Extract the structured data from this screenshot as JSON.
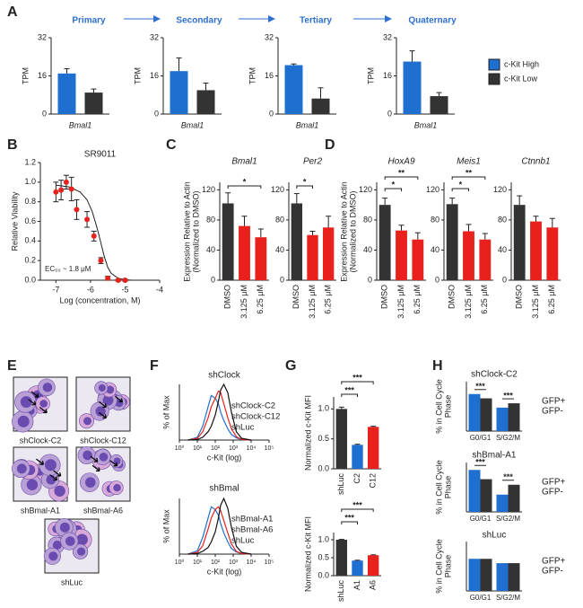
{
  "chart_data": [
    {
      "type": "bar",
      "panel": "A",
      "title": "Primary",
      "ylabel": "TPM",
      "categories": [
        "Bmal1"
      ],
      "series": [
        {
          "color": "#1f6fd1",
          "values": [
            17
          ],
          "errors": [
            2
          ]
        },
        {
          "color": "#333333",
          "values": [
            9
          ],
          "errors": [
            1.5
          ]
        }
      ],
      "ylim": [
        0,
        32
      ],
      "yticks": [
        0,
        16,
        32
      ]
    },
    {
      "type": "bar",
      "title": "Secondary",
      "ylabel": "TPM",
      "categories": [
        "Bmal1"
      ],
      "series": [
        {
          "color": "#1f6fd1",
          "values": [
            18
          ],
          "errors": [
            5.5
          ]
        },
        {
          "color": "#333333",
          "values": [
            10
          ],
          "errors": [
            3
          ]
        }
      ],
      "ylim": [
        0,
        32
      ],
      "yticks": [
        0,
        16,
        32
      ]
    },
    {
      "type": "bar",
      "title": "Tertiary",
      "ylabel": "TPM",
      "categories": [
        "Bmal1"
      ],
      "series": [
        {
          "color": "#1f6fd1",
          "values": [
            20.5
          ],
          "errors": [
            0.5
          ]
        },
        {
          "color": "#333333",
          "values": [
            6.5
          ],
          "errors": [
            4.5
          ]
        }
      ],
      "ylim": [
        0,
        32
      ],
      "yticks": [
        0,
        16,
        32
      ]
    },
    {
      "type": "bar",
      "title": "Quaternary",
      "ylabel": "TPM",
      "categories": [
        "Bmal1"
      ],
      "series": [
        {
          "name": "c-Kit High",
          "color": "#1f6fd1",
          "values": [
            22
          ],
          "errors": [
            4.5
          ]
        },
        {
          "name": "c-Kit Low",
          "color": "#333333",
          "values": [
            7.5
          ],
          "errors": [
            1.5
          ]
        }
      ],
      "ylim": [
        0,
        32
      ],
      "yticks": [
        0,
        16,
        32
      ],
      "legend": "right"
    },
    {
      "type": "scatter",
      "panel": "B",
      "title": "SR9011",
      "xlabel": "Log (concentration, M)",
      "ylabel": "Relative Viability",
      "annotation": "EC₅₀ ~ 1.8 μM",
      "color": "#e8211c",
      "x": [
        -7,
        -6.85,
        -6.7,
        -6.55,
        -6.4,
        -6.1,
        -5.9,
        -5.7,
        -5.5,
        -5.2,
        -5.0
      ],
      "values": [
        0.9,
        0.92,
        1.0,
        0.93,
        0.72,
        0.62,
        0.45,
        0.2,
        0.02,
        0.0,
        0.0
      ],
      "errors": [
        0.1,
        0.1,
        0.07,
        0.12,
        0.1,
        0.08,
        0.05,
        0.03,
        0.02,
        0.01,
        0.01
      ],
      "fit": {
        "x": [
          -7,
          -6.6,
          -6.3,
          -6.1,
          -5.95,
          -5.8,
          -5.7,
          -5.6,
          -5.5,
          -5.4,
          -5.2,
          -5.0,
          -4.8
        ],
        "y": [
          0.97,
          0.95,
          0.9,
          0.82,
          0.7,
          0.52,
          0.38,
          0.24,
          0.13,
          0.07,
          0.02,
          0.005,
          0
        ]
      },
      "xlim": [
        -7.45,
        -4
      ],
      "xticks": [
        -7,
        -6,
        -5,
        -4
      ],
      "ylim": [
        0,
        1.2
      ],
      "yticks": [
        {
          "value": 0,
          "label": "0.0"
        },
        0.2,
        0.4,
        0.6,
        0.8,
        {
          "value": 1,
          "label": "1.0"
        },
        1.2
      ]
    },
    {
      "type": "bar",
      "panel": "C",
      "title": "Bmal1",
      "ylabel": [
        "Expression Relative to Actin",
        "(Normalized to DMSO)"
      ],
      "categories": [
        "DMSO",
        "3.125 μM",
        "6.25 μM"
      ],
      "values": [
        102,
        72,
        57
      ],
      "errors": [
        14,
        13,
        11
      ],
      "colors": [
        "#333333",
        "#e8211c",
        "#e8211c"
      ],
      "ylim": [
        0,
        130
      ],
      "yticks": [
        0,
        40,
        80,
        120
      ],
      "significance": [
        {
          "between": [
            0,
            2
          ],
          "label": "*"
        }
      ]
    },
    {
      "type": "bar",
      "title": "Per2",
      "categories": [
        "DMSO",
        "3.125 μM",
        "6.25 μM"
      ],
      "values": [
        102,
        60,
        70
      ],
      "errors": [
        13,
        5,
        15
      ],
      "colors": [
        "#333333",
        "#e8211c",
        "#e8211c"
      ],
      "ylim": [
        0,
        130
      ],
      "yticks": [
        0,
        40,
        80,
        120
      ],
      "significance": [
        {
          "between": [
            0,
            1
          ],
          "label": "*"
        }
      ]
    },
    {
      "type": "bar",
      "panel": "D",
      "title": "HoxA9",
      "ylabel": [
        "Expression Relative to Actin",
        "(Normalized to DMSO)"
      ],
      "categories": [
        "DMSO",
        "3.125 μM",
        "6.25 μM"
      ],
      "values": [
        100,
        66,
        54
      ],
      "errors": [
        9,
        7,
        9
      ],
      "colors": [
        "#333333",
        "#e8211c",
        "#e8211c"
      ],
      "ylim": [
        0,
        130
      ],
      "yticks": [
        0,
        40,
        80,
        120
      ],
      "significance": [
        {
          "between": [
            0,
            2
          ],
          "label": "**"
        },
        {
          "between": [
            0,
            1
          ],
          "label": "*"
        }
      ]
    },
    {
      "type": "bar",
      "title": "Meis1",
      "categories": [
        "DMSO",
        "3.125 μM",
        "6.25 μM"
      ],
      "values": [
        101,
        65,
        54
      ],
      "errors": [
        8,
        9,
        8
      ],
      "colors": [
        "#333333",
        "#e8211c",
        "#e8211c"
      ],
      "ylim": [
        0,
        130
      ],
      "yticks": [
        0,
        40,
        80,
        120
      ],
      "significance": [
        {
          "between": [
            0,
            2
          ],
          "label": "**"
        },
        {
          "between": [
            0,
            1
          ],
          "label": "*"
        }
      ]
    },
    {
      "type": "bar",
      "title": "Ctnnb1",
      "categories": [
        "DMSO",
        "3.125 μM",
        "6.25 μM"
      ],
      "values": [
        100,
        78,
        70
      ],
      "errors": [
        12,
        7,
        12
      ],
      "colors": [
        "#333333",
        "#e8211c",
        "#e8211c"
      ],
      "ylim": [
        0,
        130
      ],
      "yticks": [
        0,
        40,
        80,
        120
      ]
    },
    {
      "type": "line",
      "panel": "F",
      "title": "shClock",
      "ylabel": "% of Max",
      "xlabel": "c-Kit (log)",
      "log_x": true,
      "x": [
        3,
        10,
        20,
        40,
        60,
        100,
        150,
        200,
        300,
        500,
        800,
        1500,
        3000,
        10000
      ],
      "series": [
        {
          "name": "shClock-C2",
          "color": "#1f6fd1",
          "values": [
            0,
            5,
            25,
            60,
            80,
            75,
            65,
            50,
            35,
            20,
            10,
            4,
            1,
            0
          ]
        },
        {
          "name": "shClock-C12",
          "color": "#e8211c",
          "values": [
            0,
            3,
            15,
            40,
            60,
            75,
            88,
            85,
            65,
            40,
            20,
            6,
            1,
            0
          ]
        },
        {
          "name": "shLuc",
          "color": "#111111",
          "values": [
            0,
            1,
            5,
            15,
            25,
            45,
            70,
            90,
            100,
            85,
            50,
            15,
            3,
            0
          ]
        }
      ],
      "xlim": [
        1,
        100000
      ],
      "xticks": [
        {
          "value": 1,
          "label": "10⁰"
        },
        {
          "value": 10,
          "label": "10¹"
        },
        {
          "value": 100,
          "label": "10²"
        },
        {
          "value": 1000,
          "label": "10³"
        },
        {
          "value": 10000,
          "label": "10⁴"
        },
        {
          "value": 100000,
          "label": "10⁵"
        }
      ],
      "ylim": [
        0,
        100
      ],
      "legend": "right"
    },
    {
      "type": "line",
      "title": "shBmal",
      "ylabel": "% of Max",
      "xlabel": "c-Kit (log)",
      "log_x": true,
      "x": [
        3,
        10,
        20,
        40,
        60,
        100,
        150,
        200,
        300,
        500,
        800,
        1500,
        3000,
        10000
      ],
      "series": [
        {
          "name": "shBmal-A1",
          "color": "#1f6fd1",
          "values": [
            0,
            6,
            30,
            65,
            85,
            80,
            70,
            55,
            38,
            22,
            10,
            4,
            1,
            0
          ]
        },
        {
          "name": "shBmal-A6",
          "color": "#e8211c",
          "values": [
            0,
            3,
            15,
            45,
            65,
            80,
            85,
            78,
            60,
            38,
            18,
            5,
            1,
            0
          ]
        },
        {
          "name": "shLuc",
          "color": "#111111",
          "values": [
            0,
            1,
            5,
            12,
            22,
            40,
            65,
            88,
            100,
            82,
            48,
            14,
            3,
            0
          ]
        }
      ],
      "xlim": [
        1,
        100000
      ],
      "xticks": [
        {
          "value": 1,
          "label": "10⁰"
        },
        {
          "value": 10,
          "label": "10¹"
        },
        {
          "value": 100,
          "label": "10²"
        },
        {
          "value": 1000,
          "label": "10³"
        },
        {
          "value": 10000,
          "label": "10⁴"
        },
        {
          "value": 100000,
          "label": "10⁵"
        }
      ],
      "ylim": [
        0,
        100
      ],
      "legend": "right"
    },
    {
      "type": "bar",
      "panel": "G",
      "ylabel": "Normalized c-Kit MFI",
      "categories": [
        "shLuc",
        "C2",
        "C12"
      ],
      "values": [
        1,
        0.4,
        0.7
      ],
      "errors": [
        0.03,
        0.01,
        0.01
      ],
      "colors": [
        "#333333",
        "#1f6fd1",
        "#e8211c"
      ],
      "ylim": [
        0,
        1.2
      ],
      "yticks": [
        {
          "value": 0,
          "label": "0.0"
        },
        0.5,
        {
          "value": 1,
          "label": "1.0"
        }
      ],
      "significance": [
        {
          "between": [
            0,
            2
          ],
          "label": "***"
        },
        {
          "between": [
            0,
            1
          ],
          "label": "***"
        }
      ]
    },
    {
      "type": "bar",
      "ylabel": "Normalized c-Kit MFI",
      "categories": [
        "shLuc",
        "A1",
        "A6"
      ],
      "values": [
        1,
        0.42,
        0.57
      ],
      "errors": [
        0.01,
        0.01,
        0.01
      ],
      "colors": [
        "#333333",
        "#1f6fd1",
        "#e8211c"
      ],
      "ylim": [
        0,
        1.2
      ],
      "yticks": [
        {
          "value": 0,
          "label": "0.0"
        },
        0.5,
        {
          "value": 1,
          "label": "1.0"
        }
      ],
      "significance": [
        {
          "between": [
            0,
            2
          ],
          "label": "***"
        },
        {
          "between": [
            0,
            1
          ],
          "label": "***"
        }
      ]
    },
    {
      "type": "bar",
      "panel": "H",
      "title": "shClock-C2",
      "ylabel": [
        "% in Cell Cycle",
        "Phase"
      ],
      "categories": [
        "G0/G1",
        "S/G2/M"
      ],
      "series": [
        {
          "name": "GFP+",
          "color": "#1f6fd1",
          "values": [
            60,
            38
          ]
        },
        {
          "name": "GFP-",
          "color": "#333333",
          "values": [
            53,
            45
          ]
        }
      ],
      "ylim": [
        0,
        80
      ],
      "legend": "right",
      "significance": [
        {
          "category": 0,
          "label": "***"
        },
        {
          "category": 1,
          "label": "***"
        }
      ]
    },
    {
      "type": "bar",
      "title": "shBmal-A1",
      "ylabel": [
        "% in Cell Cycle",
        "Phase"
      ],
      "categories": [
        "G0/G1",
        "S/G2/M"
      ],
      "series": [
        {
          "name": "GFP+",
          "color": "#1f6fd1",
          "values": [
            68,
            28
          ]
        },
        {
          "name": "GFP-",
          "color": "#333333",
          "values": [
            53,
            44
          ]
        }
      ],
      "ylim": [
        0,
        80
      ],
      "legend": "right",
      "significance": [
        {
          "category": 0,
          "label": "***"
        },
        {
          "category": 1,
          "label": "***"
        }
      ]
    },
    {
      "type": "bar",
      "title": "shLuc",
      "ylabel": [
        "% in Cell Cycle",
        "Phase"
      ],
      "categories": [
        "G0/G1",
        "S/G2/M"
      ],
      "series": [
        {
          "name": "GFP+",
          "color": "#1f6fd1",
          "values": [
            52,
            45
          ]
        },
        {
          "name": "GFP-",
          "color": "#333333",
          "values": [
            52,
            45
          ]
        }
      ],
      "ylim": [
        0,
        80
      ],
      "legend": "right"
    }
  ],
  "micrographs": {
    "panel": "E",
    "items": [
      {
        "caption": "shClock-C2"
      },
      {
        "caption": "shClock-C12"
      },
      {
        "caption": "shBmal-A1"
      },
      {
        "caption": "shBmal-A6"
      },
      {
        "caption": "shLuc"
      }
    ]
  }
}
